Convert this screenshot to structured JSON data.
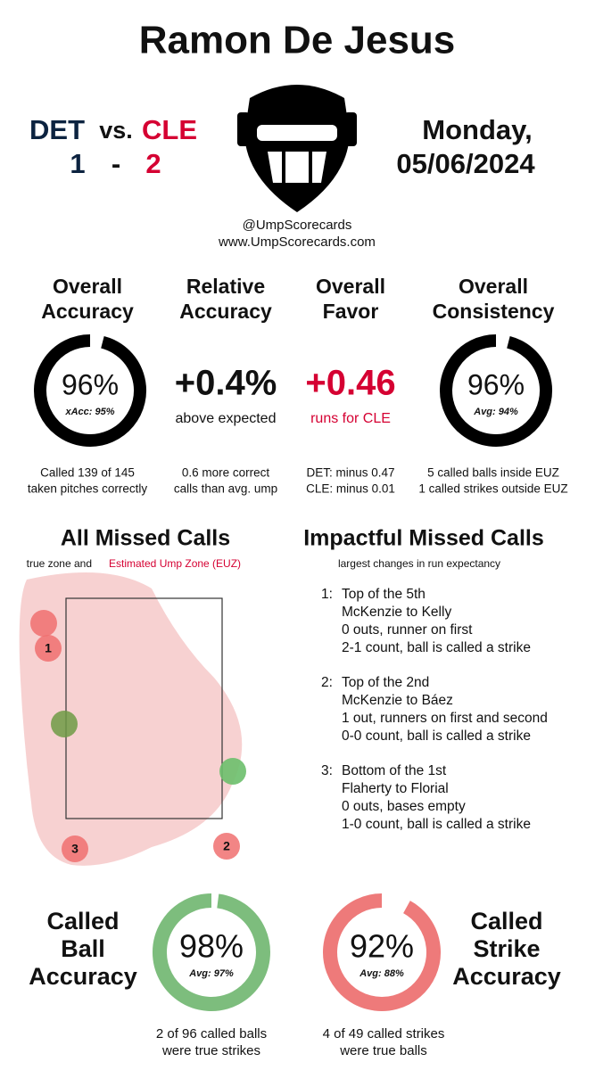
{
  "header": {
    "title": "Ramon De Jesus",
    "away": "DET",
    "vs": "vs.",
    "home": "CLE",
    "away_score": "1",
    "dash": "-",
    "home_score": "2",
    "day": "Monday,",
    "date": "05/06/2024",
    "handle": "@UmpScorecards",
    "site": "www.UmpScorecards.com"
  },
  "metrics": [
    {
      "title": [
        "Overall",
        "Accuracy"
      ],
      "ring": {
        "value": 96,
        "label": "96%",
        "sub": "xAcc: 95%"
      },
      "note": [
        "Called 139 of 145",
        "taken pitches correctly"
      ]
    },
    {
      "title": [
        "Relative",
        "Accuracy"
      ],
      "big": "+0.4%",
      "small": "above expected",
      "note": [
        "0.6 more correct",
        "calls than avg. ump"
      ]
    },
    {
      "title": [
        "Overall",
        "Favor"
      ],
      "big": "+0.46",
      "small": "runs for CLE",
      "note": [
        "DET: minus 0.47",
        "CLE: minus 0.01"
      ]
    },
    {
      "title": [
        "Overall",
        "Consistency"
      ],
      "ring": {
        "value": 96,
        "label": "96%",
        "sub": "Avg: 94%"
      },
      "note": [
        "5 called balls inside EUZ",
        "1 called strikes outside EUZ"
      ]
    }
  ],
  "missed": {
    "title": "All Missed Calls",
    "subtitle": "true zone and",
    "subtitle_euz": "Estimated Ump Zone (EUZ)",
    "labels": [
      "1",
      "2",
      "3"
    ]
  },
  "impactful": {
    "title": "Impactful Missed Calls",
    "subtitle": "largest changes in run expectancy",
    "items": [
      {
        "num": "1:",
        "lines": [
          "Top of the 5th",
          "McKenzie to Kelly",
          "0 outs, runner on first",
          "2-1 count, ball is called a strike"
        ]
      },
      {
        "num": "2:",
        "lines": [
          "Top of the 2nd",
          "McKenzie to Báez",
          "1 out, runners on first and second",
          "0-0 count, ball is called a strike"
        ]
      },
      {
        "num": "3:",
        "lines": [
          "Bottom of the 1st",
          "Flaherty to Florial",
          "0 outs, bases empty",
          "1-0 count, ball is called a strike"
        ]
      }
    ]
  },
  "bottom": [
    {
      "title": [
        "Called",
        "Ball",
        "Accuracy"
      ],
      "ring": {
        "value": 98,
        "label": "98%",
        "sub": "Avg: 97%"
      },
      "note": [
        "2 of 96 called balls",
        "were true strikes"
      ]
    },
    {
      "title": [
        "Called",
        "Strike",
        "Accuracy"
      ],
      "ring": {
        "value": 92,
        "label": "92%",
        "sub": "Avg: 88%"
      },
      "note": [
        "4 of 49 called strikes",
        "were true balls"
      ]
    }
  ]
}
